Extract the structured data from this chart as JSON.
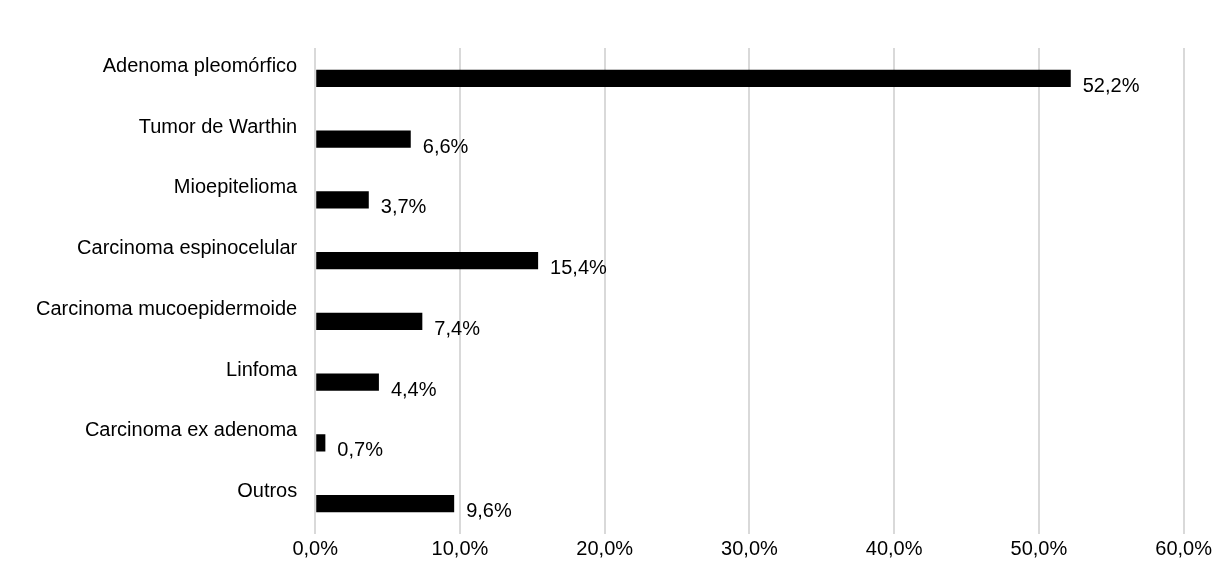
{
  "chart_data": {
    "type": "bar",
    "orientation": "horizontal",
    "categories": [
      "Adenoma pleomórfico",
      "Tumor de Warthin",
      "Mioepitelioma",
      "Carcinoma espinocelular",
      "Carcinoma mucoepidermoide",
      "Linfoma",
      "Carcinoma ex adenoma",
      "Outros"
    ],
    "values": [
      52.2,
      6.6,
      3.7,
      15.4,
      7.4,
      4.4,
      0.7,
      9.6
    ],
    "value_labels": [
      "52,2%",
      "6,6%",
      "3,7%",
      "15,4%",
      "7,4%",
      "4,4%",
      "0,7%",
      "9,6%"
    ],
    "color": "#000000",
    "xlim": [
      0,
      60
    ],
    "xticks": [
      {
        "value": 0,
        "label": "0,0%"
      },
      {
        "value": 10,
        "label": "10,0%"
      },
      {
        "value": 20,
        "label": "20,0%"
      },
      {
        "value": 30,
        "label": "30,0%"
      },
      {
        "value": 40,
        "label": "40,0%"
      },
      {
        "value": 50,
        "label": "50,0%"
      },
      {
        "value": 60,
        "label": "60,0%"
      }
    ],
    "grid": "x",
    "legend": false
  }
}
